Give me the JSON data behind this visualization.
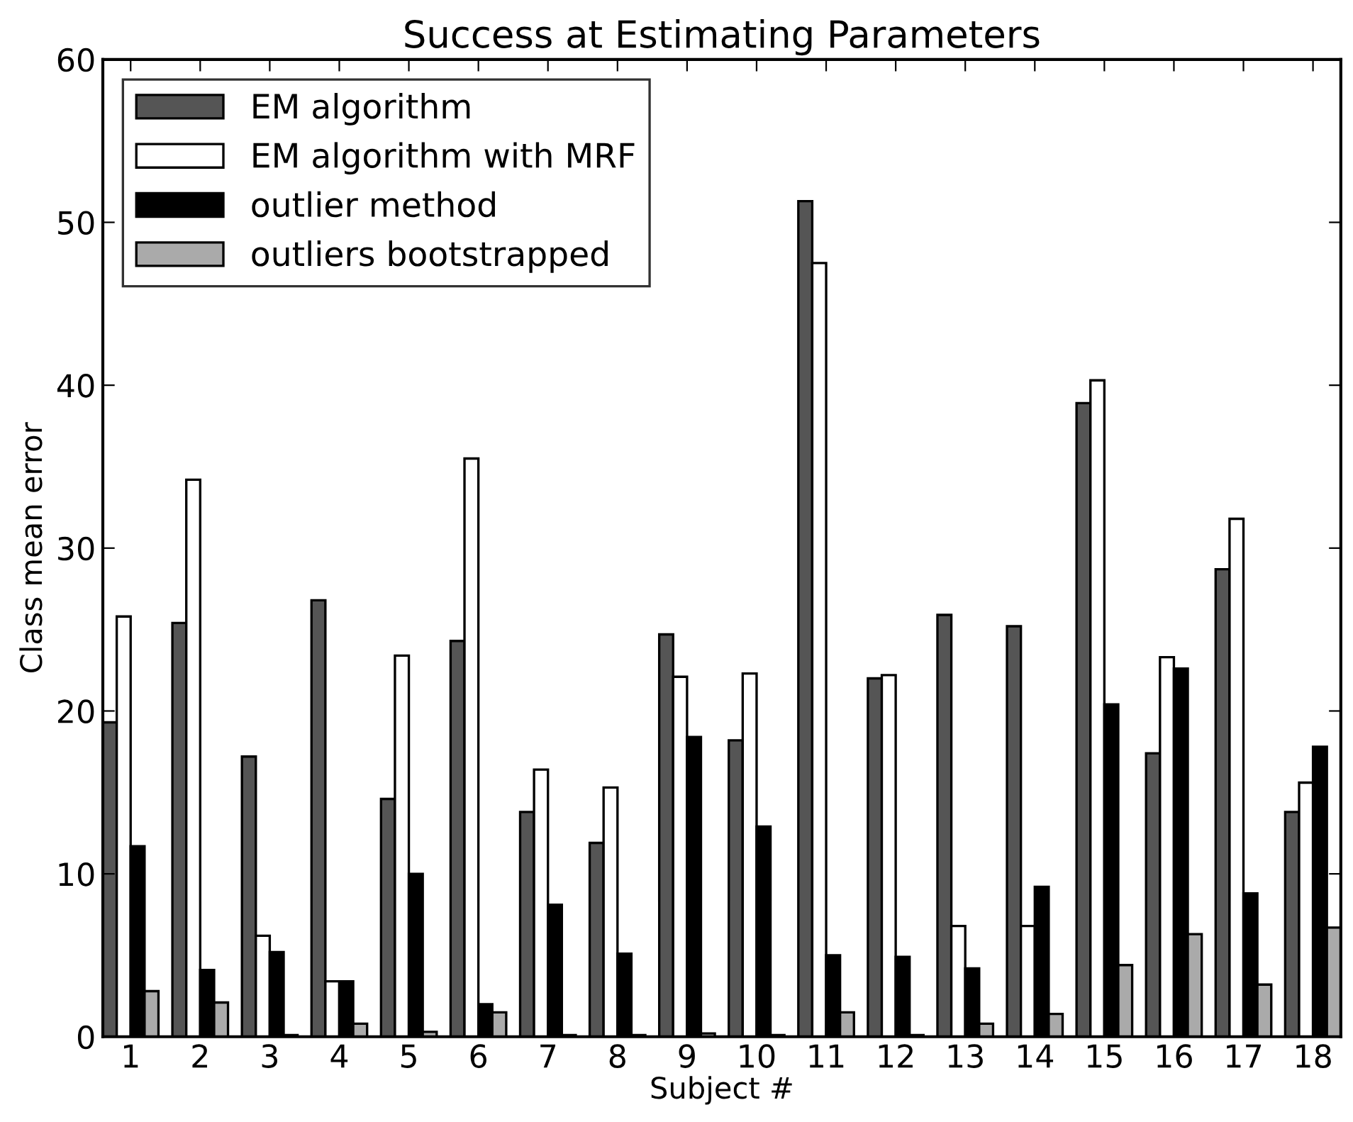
{
  "chart_data": {
    "type": "bar",
    "title": "Success at Estimating Parameters",
    "xlabel": "Subject #",
    "ylabel": "Class mean error",
    "categories": [
      "1",
      "2",
      "3",
      "4",
      "5",
      "6",
      "7",
      "8",
      "9",
      "10",
      "11",
      "12",
      "13",
      "14",
      "15",
      "16",
      "17",
      "18"
    ],
    "series": [
      {
        "name": "EM algorithm",
        "color": "#555555",
        "values": [
          19.3,
          25.4,
          17.2,
          26.8,
          14.6,
          24.3,
          13.8,
          11.9,
          24.7,
          18.2,
          51.3,
          22.0,
          25.9,
          25.2,
          38.9,
          17.4,
          28.7,
          13.8
        ]
      },
      {
        "name": "EM algorithm with MRF",
        "color": "#ffffff",
        "values": [
          25.8,
          34.2,
          6.2,
          3.4,
          23.4,
          35.5,
          16.4,
          15.3,
          22.1,
          22.3,
          47.5,
          22.2,
          6.8,
          6.8,
          40.3,
          23.3,
          31.8,
          15.6
        ]
      },
      {
        "name": "outlier method",
        "color": "#000000",
        "values": [
          11.7,
          4.1,
          5.2,
          3.4,
          10.0,
          2.0,
          8.1,
          5.1,
          18.4,
          12.9,
          5.0,
          4.9,
          4.2,
          9.2,
          20.4,
          22.6,
          8.8,
          17.8
        ]
      },
      {
        "name": "outliers bootstrapped",
        "color": "#aaaaaa",
        "values": [
          2.8,
          2.1,
          0.1,
          0.8,
          0.3,
          1.5,
          0.1,
          0.1,
          0.2,
          0.1,
          1.5,
          0.1,
          0.8,
          1.4,
          4.4,
          6.3,
          3.2,
          6.7
        ]
      }
    ],
    "ylim": [
      0,
      60
    ],
    "yticks": [
      0,
      10,
      20,
      30,
      40,
      50,
      60
    ],
    "legend": "top left"
  }
}
